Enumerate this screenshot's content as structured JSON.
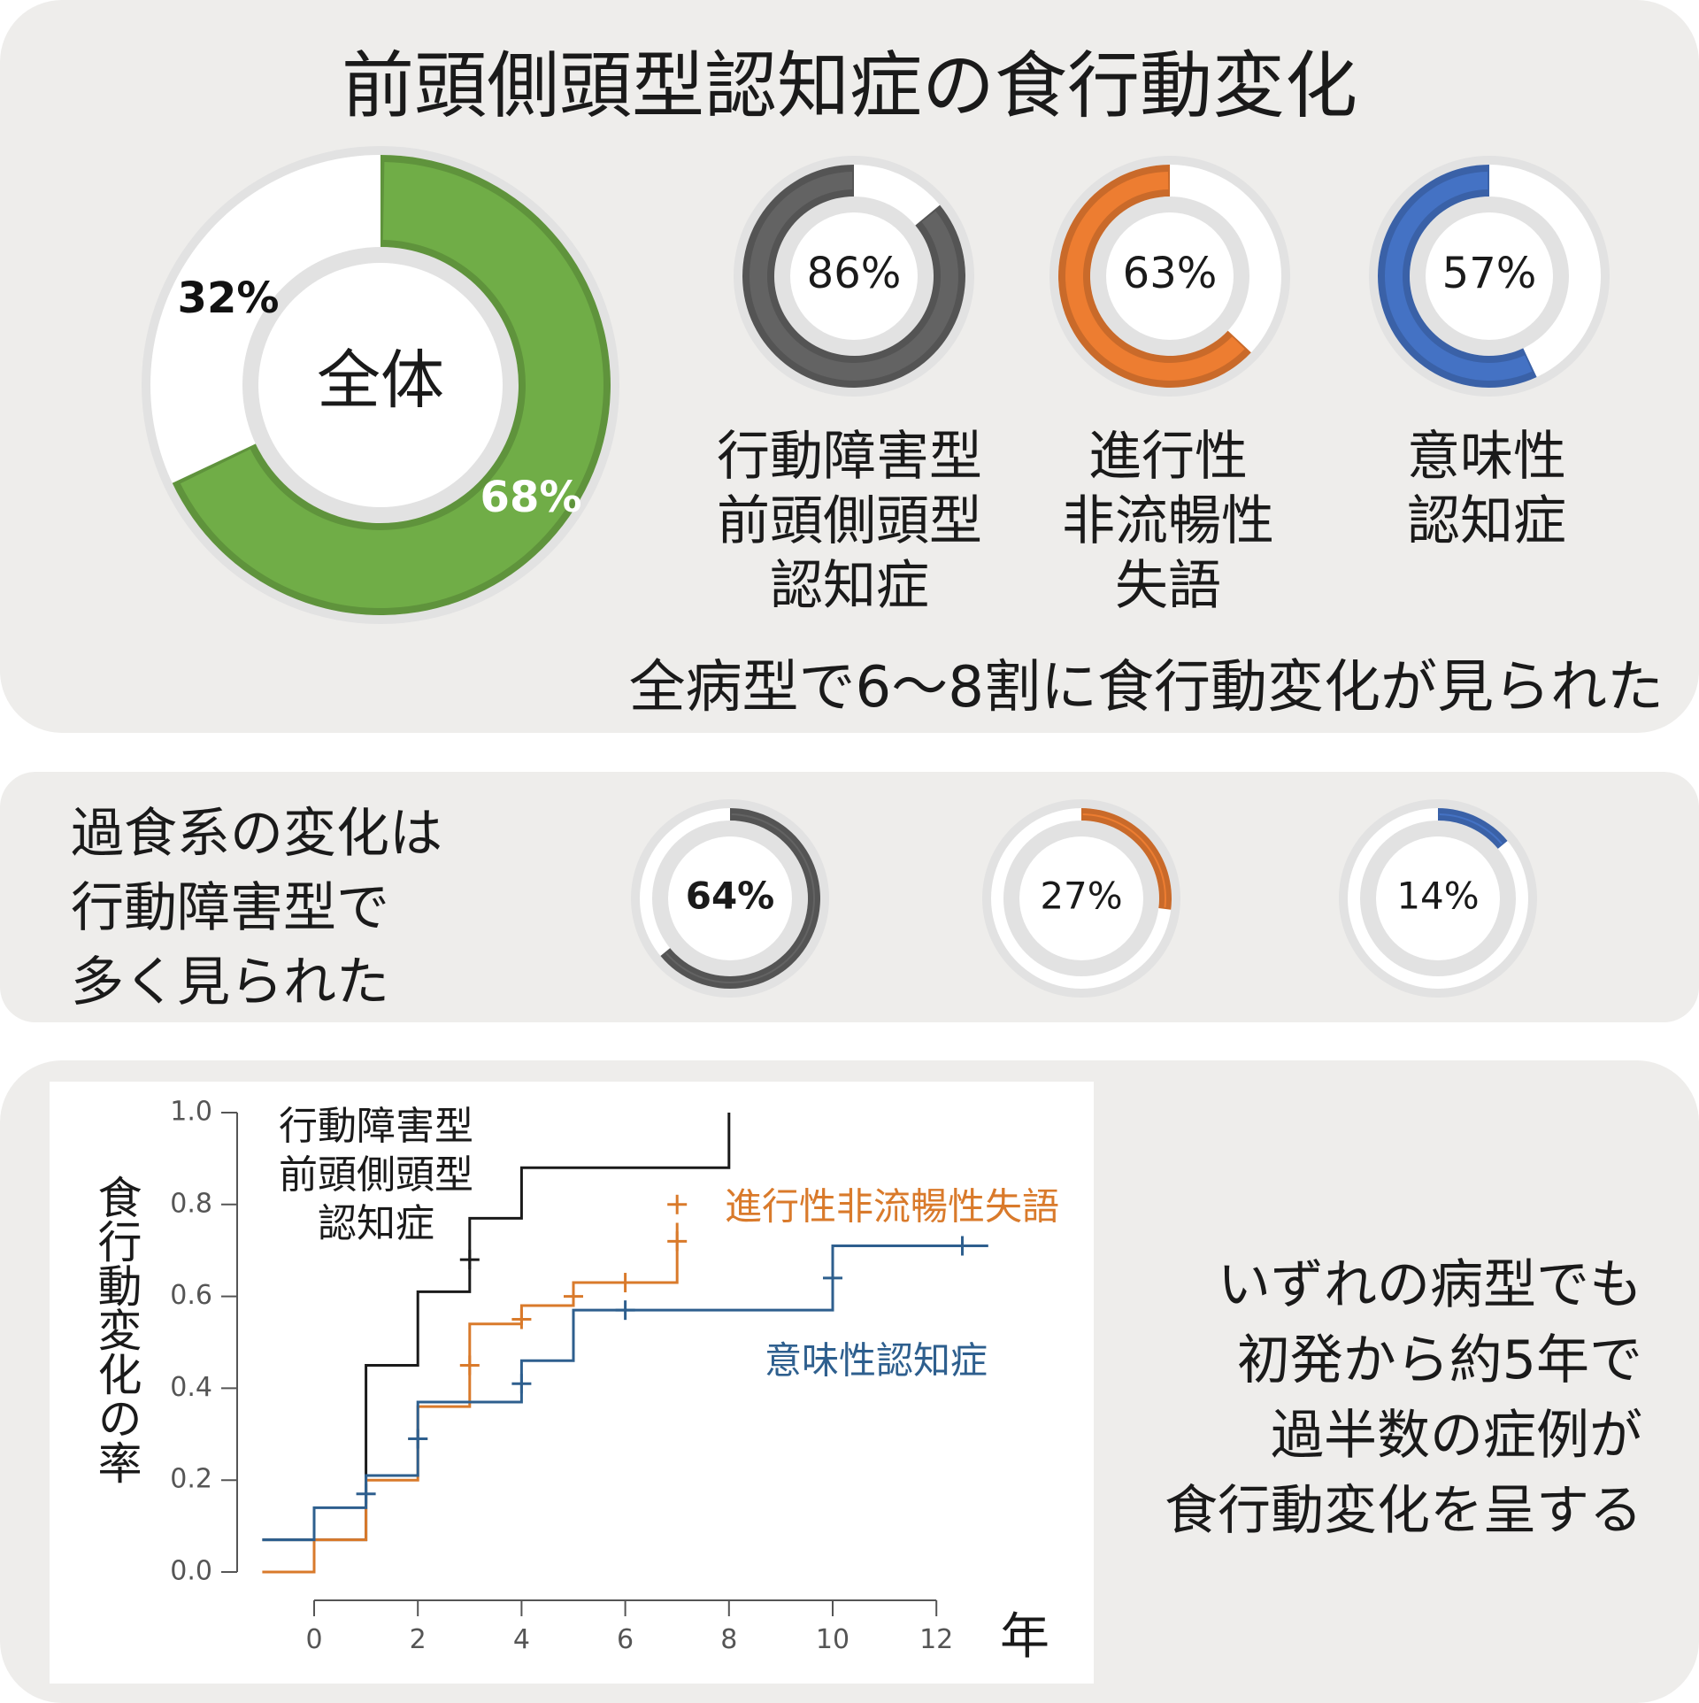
{
  "title": "前頭側頭型認知症の食行動変化",
  "colors": {
    "green": "#70ad47",
    "gray": "#636363",
    "orange": "#ed7d31",
    "blue": "#4472c4",
    "track": "#e2e2e2",
    "panel_bg": "#eeedeb",
    "black_line": "#1a1a1a",
    "orange_line": "#d97a2b",
    "blue_line": "#2e5f8e"
  },
  "overall": {
    "label": "全体",
    "value_pct": 68,
    "value_label": "68%",
    "rest_label": "32%"
  },
  "subtypes": [
    {
      "name": "行動障害型\n前頭側頭型\n認知症",
      "eating_change_pct": 86,
      "eating_change_label": "86%",
      "overeating_pct": 64,
      "overeating_label": "64%",
      "color": "gray"
    },
    {
      "name": "進行性\n非流暢性\n失語",
      "eating_change_pct": 63,
      "eating_change_label": "63%",
      "overeating_pct": 27,
      "overeating_label": "27%",
      "color": "orange"
    },
    {
      "name": "意味性\n認知症",
      "eating_change_pct": 57,
      "eating_change_label": "57%",
      "overeating_pct": 14,
      "overeating_label": "14%",
      "color": "blue"
    }
  ],
  "summary1": "全病型で6～8割に食行動変化が見られた",
  "summary2": "過食系の変化は\n行動障害型で\n多く見られた",
  "summary3": "いずれの病型でも\n初発から約5年で\n過半数の症例が\n食行動変化を呈する",
  "chart_data": [
    {
      "type": "pie",
      "title": "全体",
      "series": [
        {
          "name": "全体",
          "values": [
            68,
            32
          ]
        }
      ]
    },
    {
      "type": "pie",
      "title": "食行動変化",
      "categories": [
        "行動障害型前頭側頭型認知症",
        "進行性非流暢性失語",
        "意味性認知症"
      ],
      "values": [
        86,
        63,
        57
      ]
    },
    {
      "type": "pie",
      "title": "過食系の変化",
      "categories": [
        "行動障害型前頭側頭型認知症",
        "進行性非流暢性失語",
        "意味性認知症"
      ],
      "values": [
        64,
        27,
        14
      ]
    },
    {
      "type": "line",
      "xlabel": "年",
      "ylabel": "食行動変化の率",
      "xlim": [
        -1,
        13
      ],
      "ylim": [
        0,
        1.0
      ],
      "x_ticks": [
        "0",
        "2",
        "4",
        "6",
        "8",
        "10",
        "12"
      ],
      "y_ticks": [
        "0.0",
        "0.2",
        "0.4",
        "0.6",
        "0.8",
        "1.0"
      ],
      "series": [
        {
          "name": "行動障害型前頭側頭型認知症",
          "label_lines": [
            "行動障害型",
            "前頭側頭型",
            "認知症"
          ],
          "color": "black_line",
          "steps": [
            [
              -1,
              0.07
            ],
            [
              0,
              0.07
            ],
            [
              1,
              0.45
            ],
            [
              2,
              0.61
            ],
            [
              3,
              0.77
            ],
            [
              4,
              0.88
            ],
            [
              8,
              0.88
            ],
            [
              8,
              1.0
            ]
          ],
          "censor": [
            [
              3,
              0.68
            ]
          ]
        },
        {
          "name": "進行性非流暢性失語",
          "label_lines": [
            "進行性非流暢性失語"
          ],
          "color": "orange_line",
          "steps": [
            [
              -1,
              0.0
            ],
            [
              0,
              0.0
            ],
            [
              0,
              0.07
            ],
            [
              1,
              0.07
            ],
            [
              1,
              0.2
            ],
            [
              2,
              0.2
            ],
            [
              2,
              0.36
            ],
            [
              3,
              0.36
            ],
            [
              3,
              0.54
            ],
            [
              4,
              0.54
            ],
            [
              4,
              0.58
            ],
            [
              5,
              0.58
            ],
            [
              5,
              0.63
            ],
            [
              7,
              0.63
            ],
            [
              7,
              0.76
            ]
          ],
          "censor": [
            [
              2,
              0.29
            ],
            [
              3,
              0.45
            ],
            [
              4,
              0.55
            ],
            [
              5,
              0.6
            ],
            [
              6,
              0.63
            ],
            [
              7,
              0.72
            ],
            [
              7,
              0.8
            ]
          ]
        },
        {
          "name": "意味性認知症",
          "label_lines": [
            "意味性認知症"
          ],
          "color": "blue_line",
          "steps": [
            [
              -1,
              0.07
            ],
            [
              0,
              0.07
            ],
            [
              0,
              0.14
            ],
            [
              1,
              0.14
            ],
            [
              1,
              0.21
            ],
            [
              2,
              0.21
            ],
            [
              2,
              0.37
            ],
            [
              4,
              0.37
            ],
            [
              4,
              0.46
            ],
            [
              5,
              0.46
            ],
            [
              5,
              0.57
            ],
            [
              10,
              0.57
            ],
            [
              10,
              0.71
            ],
            [
              13,
              0.71
            ]
          ],
          "censor": [
            [
              1,
              0.17
            ],
            [
              2,
              0.29
            ],
            [
              4,
              0.41
            ],
            [
              6,
              0.57
            ],
            [
              10,
              0.64
            ],
            [
              12.5,
              0.71
            ]
          ]
        }
      ]
    }
  ]
}
